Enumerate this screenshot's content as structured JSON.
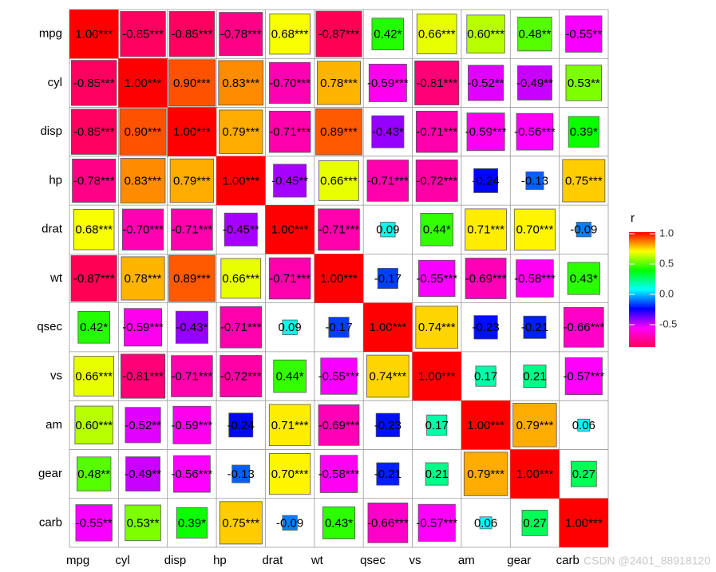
{
  "chart_data": {
    "type": "heatmap",
    "x_categories": [
      "mpg",
      "cyl",
      "disp",
      "hp",
      "drat",
      "wt",
      "qsec",
      "vs",
      "am",
      "gear",
      "carb"
    ],
    "y_categories": [
      "mpg",
      "cyl",
      "disp",
      "hp",
      "drat",
      "wt",
      "qsec",
      "vs",
      "am",
      "gear",
      "carb"
    ],
    "values": [
      [
        1.0,
        -0.85,
        -0.85,
        -0.78,
        0.68,
        -0.87,
        0.42,
        0.66,
        0.6,
        0.48,
        -0.55
      ],
      [
        -0.85,
        1.0,
        0.9,
        0.83,
        -0.7,
        0.78,
        -0.59,
        -0.81,
        -0.52,
        -0.49,
        0.53
      ],
      [
        -0.85,
        0.9,
        1.0,
        0.79,
        -0.71,
        0.89,
        -0.43,
        -0.71,
        -0.59,
        -0.56,
        0.39
      ],
      [
        -0.78,
        0.83,
        0.79,
        1.0,
        -0.45,
        0.66,
        -0.71,
        -0.72,
        -0.24,
        -0.13,
        0.75
      ],
      [
        0.68,
        -0.7,
        -0.71,
        -0.45,
        1.0,
        -0.71,
        0.09,
        0.44,
        0.71,
        0.7,
        -0.09
      ],
      [
        -0.87,
        0.78,
        0.89,
        0.66,
        -0.71,
        1.0,
        -0.17,
        -0.55,
        -0.69,
        -0.58,
        0.43
      ],
      [
        0.42,
        -0.59,
        -0.43,
        -0.71,
        0.09,
        -0.17,
        1.0,
        0.74,
        -0.23,
        -0.21,
        -0.66
      ],
      [
        0.66,
        -0.81,
        -0.71,
        -0.72,
        0.44,
        -0.55,
        0.74,
        1.0,
        0.17,
        0.21,
        -0.57
      ],
      [
        0.6,
        -0.52,
        -0.59,
        -0.24,
        0.71,
        -0.69,
        -0.23,
        0.17,
        1.0,
        0.79,
        0.06
      ],
      [
        0.48,
        -0.49,
        -0.56,
        -0.13,
        0.7,
        -0.58,
        -0.21,
        0.21,
        0.79,
        1.0,
        0.27
      ],
      [
        -0.55,
        0.53,
        0.39,
        0.75,
        -0.09,
        0.43,
        -0.66,
        -0.57,
        0.06,
        0.27,
        1.0
      ]
    ],
    "value_labels": [
      [
        "1.00***",
        "-0.85***",
        "-0.85***",
        "-0.78***",
        "0.68***",
        "-0.87***",
        "0.42*",
        "0.66***",
        "0.60***",
        "0.48**",
        "-0.55**"
      ],
      [
        "-0.85***",
        "1.00***",
        "0.90***",
        "0.83***",
        "-0.70***",
        "0.78***",
        "-0.59***",
        "-0.81***",
        "-0.52**",
        "-0.49**",
        "0.53**"
      ],
      [
        "-0.85***",
        "0.90***",
        "1.00***",
        "0.79***",
        "-0.71***",
        "0.89***",
        "-0.43*",
        "-0.71***",
        "-0.59***",
        "-0.56***",
        "0.39*"
      ],
      [
        "-0.78***",
        "0.83***",
        "0.79***",
        "1.00***",
        "-0.45**",
        "0.66***",
        "-0.71***",
        "-0.72***",
        "-0.24",
        "-0.13",
        "0.75***"
      ],
      [
        "0.68***",
        "-0.70***",
        "-0.71***",
        "-0.45**",
        "1.00***",
        "-0.71***",
        "0.09",
        "0.44*",
        "0.71***",
        "0.70***",
        "-0.09"
      ],
      [
        "-0.87***",
        "0.78***",
        "0.89***",
        "0.66***",
        "-0.71***",
        "1.00***",
        "-0.17",
        "-0.55***",
        "-0.69***",
        "-0.58***",
        "0.43*"
      ],
      [
        "0.42*",
        "-0.59***",
        "-0.43*",
        "-0.71***",
        "0.09",
        "-0.17",
        "1.00***",
        "0.74***",
        "-0.23",
        "-0.21",
        "-0.66***"
      ],
      [
        "0.66***",
        "-0.81***",
        "-0.71***",
        "-0.72***",
        "0.44*",
        "-0.55***",
        "0.74***",
        "1.00***",
        "0.17",
        "0.21",
        "-0.57***"
      ],
      [
        "0.60***",
        "-0.52**",
        "-0.59***",
        "-0.24",
        "0.71***",
        "-0.69***",
        "-0.23",
        "0.17",
        "1.00***",
        "0.79***",
        "0.06"
      ],
      [
        "0.48**",
        "-0.49**",
        "-0.56***",
        "-0.13",
        "0.70***",
        "-0.58***",
        "-0.21",
        "0.21",
        "0.79***",
        "1.00***",
        "0.27"
      ],
      [
        "-0.55**",
        "0.53**",
        "0.39*",
        "0.75***",
        "-0.09",
        "0.43*",
        "-0.66***",
        "-0.57***",
        "0.06",
        "0.27",
        "1.00***"
      ]
    ],
    "legend_title": "r",
    "clim": [
      -0.87,
      1
    ],
    "cticks": [
      {
        "value": 1,
        "label": "1.0"
      },
      {
        "value": 0.5,
        "label": "0.5"
      },
      {
        "value": 0,
        "label": "0.0"
      },
      -0.5
    ],
    "colorscale": [
      "#ff0055",
      "#ff00ff",
      "#0000ff",
      "#00ffff",
      "#00ff00",
      "#ffff00",
      "#ff0000"
    ],
    "watermark": "CSDN @2401_88918120"
  }
}
